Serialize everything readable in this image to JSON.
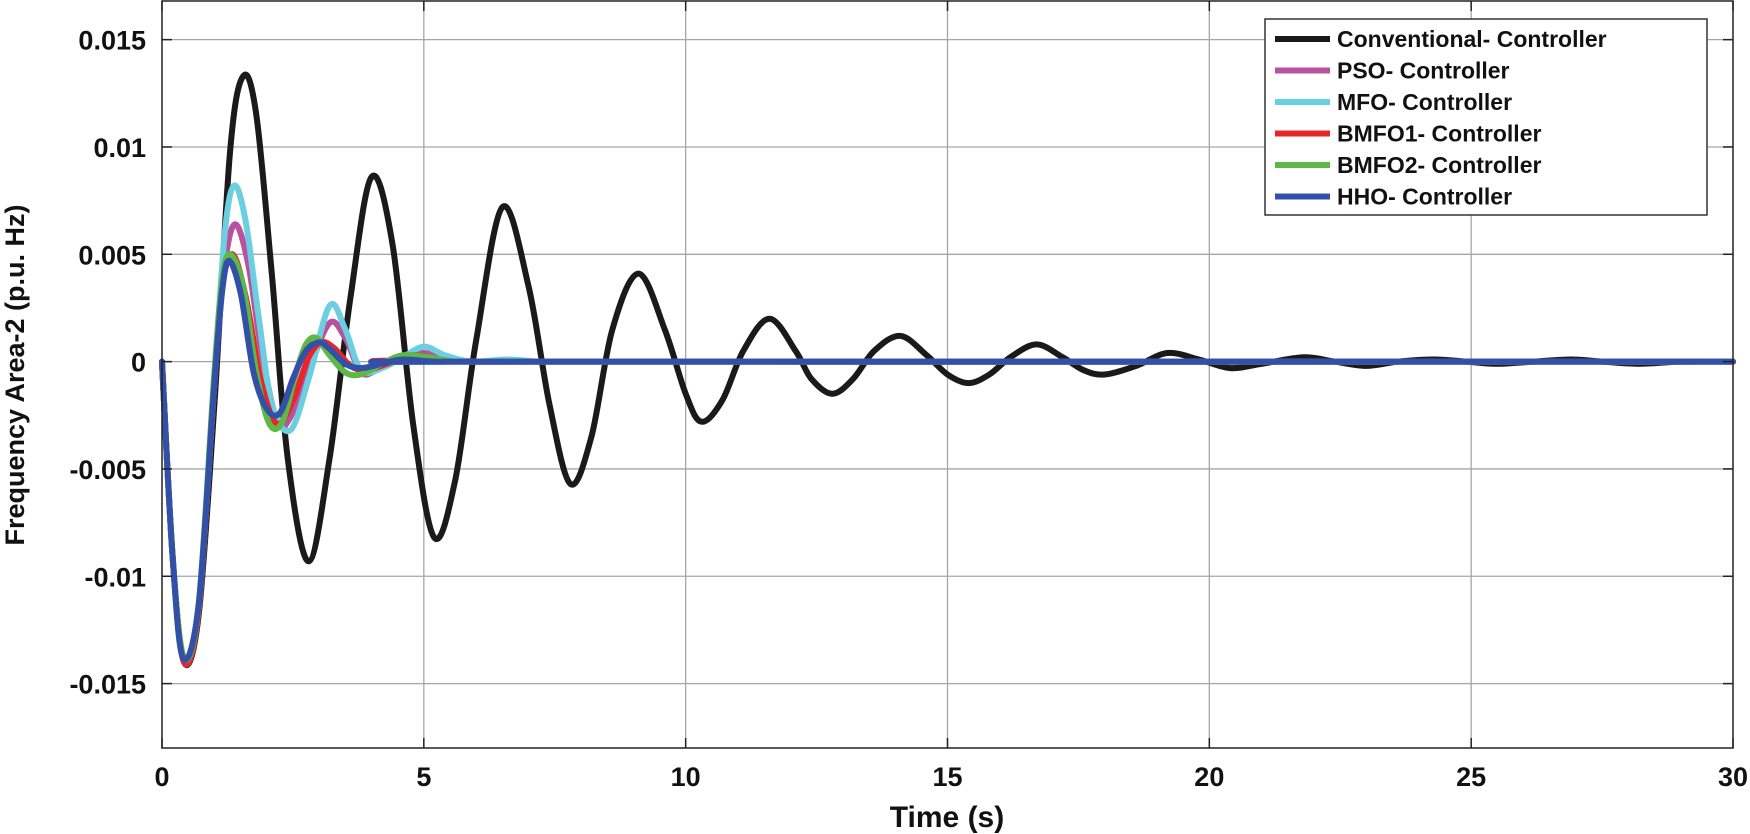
{
  "chart_data": {
    "type": "line",
    "title": "",
    "xlabel": "Time (s)",
    "ylabel": "Frequency Area-2 (p.u. Hz)",
    "xlim": [
      0,
      30
    ],
    "ylim": [
      -0.018,
      0.0168
    ],
    "xticks": [
      0,
      5,
      10,
      15,
      20,
      25,
      30
    ],
    "xtick_labels": [
      "0",
      "5",
      "10",
      "15",
      "20",
      "25",
      "30"
    ],
    "yticks": [
      -0.015,
      -0.01,
      -0.005,
      0,
      0.005,
      0.01,
      0.015
    ],
    "ytick_labels": [
      "-0.015",
      "-0.01",
      "-0.005",
      "0",
      "0.005",
      "0.01",
      "0.015"
    ],
    "grid": true,
    "legend_position": "top-right",
    "series": [
      {
        "name": "Conventional- Controller",
        "color": "#1a1a1a",
        "x": [
          0,
          0.2,
          0.42,
          0.7,
          1.0,
          1.3,
          1.55,
          1.8,
          2.1,
          2.4,
          2.8,
          3.2,
          3.6,
          4.0,
          4.4,
          4.8,
          5.2,
          5.6,
          6.0,
          6.5,
          7.0,
          7.4,
          7.8,
          8.2,
          8.6,
          9.1,
          9.6,
          10.0,
          10.3,
          10.7,
          11.1,
          11.6,
          12.1,
          12.4,
          12.8,
          13.2,
          13.6,
          14.1,
          14.6,
          15.0,
          15.4,
          15.8,
          16.2,
          16.7,
          17.2,
          17.6,
          18.0,
          18.6,
          19.2,
          19.8,
          20.4,
          21.0,
          21.8,
          22.4,
          23.0,
          23.6,
          24.3,
          24.9,
          25.5,
          26.2,
          26.9,
          27.5,
          28.2,
          29.0,
          30.0
        ],
        "y": [
          0,
          -0.009,
          -0.014,
          -0.0118,
          -0.002,
          0.0098,
          0.0133,
          0.0115,
          0.004,
          -0.0045,
          -0.0093,
          -0.0045,
          0.003,
          0.0086,
          0.0055,
          -0.003,
          -0.0082,
          -0.0055,
          0.001,
          0.0072,
          0.0035,
          -0.002,
          -0.0057,
          -0.0035,
          0.0015,
          0.0041,
          0.0015,
          -0.0015,
          -0.0028,
          -0.0018,
          0.0005,
          0.002,
          0.0005,
          -0.0008,
          -0.0015,
          -0.0008,
          0.0005,
          0.0012,
          0.0003,
          -0.0006,
          -0.001,
          -0.0006,
          0.0002,
          0.0008,
          0.0002,
          -0.0004,
          -0.0006,
          -0.0002,
          0.0004,
          0.0001,
          -0.0003,
          -0.0001,
          0.0002,
          0,
          -0.0002,
          0,
          0.0001,
          0,
          -0.0001,
          0,
          0.0001,
          0,
          -0.0001,
          0,
          0
        ]
      },
      {
        "name": "PSO- Controller",
        "color": "#b8529e",
        "x": [
          0,
          0.2,
          0.42,
          0.7,
          1.0,
          1.2,
          1.4,
          1.65,
          1.9,
          2.2,
          2.45,
          2.8,
          3.2,
          3.5,
          3.8,
          4.1,
          4.5,
          5.0,
          5.5,
          6.0,
          7.0,
          9.0,
          30.0
        ],
        "y": [
          0,
          -0.009,
          -0.014,
          -0.0115,
          -0.001,
          0.0045,
          0.0064,
          0.0045,
          0.0005,
          -0.0028,
          -0.0026,
          -0.0004,
          0.0018,
          0.0011,
          -0.0005,
          -0.0004,
          0.0001,
          0.0004,
          0.0001,
          0,
          0,
          0,
          0
        ]
      },
      {
        "name": "MFO- Controller",
        "color": "#6ccfe0",
        "x": [
          0,
          0.2,
          0.42,
          0.7,
          1.0,
          1.2,
          1.38,
          1.6,
          1.85,
          2.1,
          2.45,
          2.8,
          3.2,
          3.5,
          3.8,
          4.2,
          4.6,
          5.0,
          5.4,
          5.9,
          6.6,
          7.2,
          8.0,
          30.0
        ],
        "y": [
          0,
          -0.009,
          -0.014,
          -0.0115,
          -0.001,
          0.006,
          0.0082,
          0.0065,
          0.002,
          -0.002,
          -0.0032,
          -0.0008,
          0.0026,
          0.0015,
          -0.0004,
          -0.0003,
          0.0002,
          0.0007,
          0.0003,
          0,
          0.0001,
          0,
          0,
          0
        ]
      },
      {
        "name": "BMFO1- Controller",
        "color": "#e8252b",
        "x": [
          0,
          0.2,
          0.42,
          0.7,
          1.0,
          1.15,
          1.35,
          1.6,
          1.9,
          2.2,
          2.5,
          2.8,
          3.05,
          3.3,
          3.6,
          3.9,
          4.3,
          4.8,
          5.3,
          6.0,
          30.0
        ],
        "y": [
          0,
          -0.009,
          -0.014,
          -0.0115,
          -0.001,
          0.0035,
          0.005,
          0.003,
          -0.001,
          -0.0029,
          -0.0018,
          0.0002,
          0.0009,
          0.0006,
          -0.0002,
          -0.0004,
          -0.0001,
          0.0003,
          0.0001,
          0,
          0
        ]
      },
      {
        "name": "BMFO2- Controller",
        "color": "#5db845",
        "x": [
          0,
          0.2,
          0.42,
          0.7,
          1.0,
          1.15,
          1.3,
          1.55,
          1.8,
          2.05,
          2.3,
          2.55,
          2.75,
          2.95,
          3.2,
          3.5,
          3.8,
          4.2,
          4.6,
          5.1,
          5.6,
          6.2,
          30.0
        ],
        "y": [
          0,
          -0.009,
          -0.0138,
          -0.0113,
          -0.0005,
          0.0038,
          0.005,
          0.0035,
          -0.0005,
          -0.0029,
          -0.0028,
          -0.0006,
          0.0008,
          0.0011,
          0.0003,
          -0.0005,
          -0.0006,
          -0.0001,
          0.0003,
          0.0002,
          0,
          0,
          0
        ]
      },
      {
        "name": "HHO- Controller",
        "color": "#3350a8",
        "x": [
          0,
          0.2,
          0.4,
          0.7,
          1.0,
          1.15,
          1.28,
          1.5,
          1.75,
          2.0,
          2.25,
          2.5,
          2.75,
          3.0,
          3.2,
          3.5,
          3.8,
          4.2,
          4.6,
          5.2,
          6.0,
          30.0
        ],
        "y": [
          0,
          -0.009,
          -0.0138,
          -0.0113,
          -0.001,
          0.0033,
          0.0047,
          0.0032,
          -0.0005,
          -0.0022,
          -0.0024,
          -0.0008,
          0.0005,
          0.0009,
          0.0006,
          -0.0001,
          -0.0003,
          -0.0001,
          0.0001,
          0,
          0,
          0
        ]
      }
    ]
  }
}
